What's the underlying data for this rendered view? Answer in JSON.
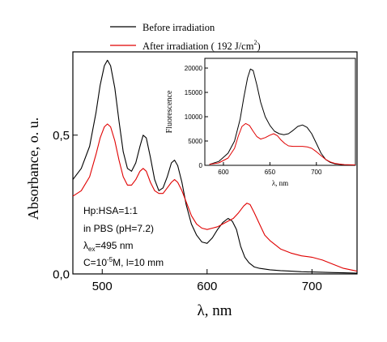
{
  "chart_data": [
    {
      "type": "line",
      "xlabel": "λ, nm",
      "ylabel": "Absorbance, o. u.",
      "xlim": [
        472,
        743
      ],
      "ylim": [
        0.0,
        0.8
      ],
      "x_ticks": [
        500,
        600,
        700
      ],
      "x_tick_labels": [
        "500",
        "600",
        "700"
      ],
      "y_ticks": [
        0.0,
        0.5
      ],
      "y_tick_labels": [
        "0,0",
        "0,5"
      ],
      "legend": {
        "placement": "top, above the plot",
        "entries": [
          {
            "label": "Before irradiation",
            "color": "#000000"
          },
          {
            "label_main": "After irradiation ( 192 J/cm",
            "label_sup": "2",
            "label_tail": ")",
            "color": "#e00000"
          }
        ]
      },
      "annotation": {
        "line1": "Hp:HSA=1:1",
        "line2": "in PBS (pH=7.2)",
        "line3_lambda": "λ",
        "line3_sub": "ex",
        "line3_rest": "=495 nm",
        "line4_c": "C=10",
        "line4_sup": "-5",
        "line4_rest": "M, l=10 mm"
      },
      "series": [
        {
          "name": "Before irradiation",
          "color": "#000000",
          "x": [
            472,
            480,
            488,
            494,
            498,
            502,
            505,
            508,
            512,
            516,
            520,
            524,
            528,
            532,
            536,
            539,
            542,
            546,
            550,
            554,
            558,
            562,
            566,
            569,
            572,
            576,
            580,
            585,
            590,
            595,
            600,
            605,
            610,
            615,
            620,
            624,
            628,
            632,
            636,
            640,
            645,
            650,
            660,
            670,
            680,
            690,
            700,
            710,
            720,
            730,
            743
          ],
          "y": [
            0.34,
            0.38,
            0.46,
            0.58,
            0.68,
            0.75,
            0.77,
            0.75,
            0.67,
            0.55,
            0.44,
            0.38,
            0.37,
            0.4,
            0.46,
            0.5,
            0.49,
            0.42,
            0.34,
            0.3,
            0.31,
            0.35,
            0.4,
            0.41,
            0.39,
            0.33,
            0.25,
            0.18,
            0.14,
            0.115,
            0.11,
            0.13,
            0.16,
            0.185,
            0.2,
            0.19,
            0.16,
            0.1,
            0.06,
            0.04,
            0.025,
            0.02,
            0.015,
            0.012,
            0.01,
            0.008,
            0.007,
            0.006,
            0.005,
            0.004,
            0.003
          ]
        },
        {
          "name": "After irradiation ( 192 J/cm2)",
          "color": "#e00000",
          "x": [
            472,
            480,
            488,
            494,
            498,
            502,
            505,
            508,
            512,
            516,
            520,
            524,
            528,
            532,
            536,
            539,
            542,
            546,
            550,
            554,
            558,
            562,
            566,
            569,
            572,
            576,
            580,
            585,
            590,
            595,
            600,
            605,
            610,
            615,
            620,
            625,
            630,
            635,
            638,
            641,
            645,
            650,
            655,
            660,
            670,
            680,
            690,
            700,
            710,
            720,
            730,
            743
          ],
          "y": [
            0.28,
            0.3,
            0.35,
            0.43,
            0.49,
            0.53,
            0.54,
            0.53,
            0.48,
            0.41,
            0.35,
            0.32,
            0.32,
            0.34,
            0.37,
            0.38,
            0.37,
            0.33,
            0.3,
            0.29,
            0.29,
            0.31,
            0.33,
            0.34,
            0.33,
            0.3,
            0.26,
            0.21,
            0.18,
            0.165,
            0.16,
            0.165,
            0.17,
            0.18,
            0.19,
            0.2,
            0.22,
            0.245,
            0.255,
            0.25,
            0.22,
            0.18,
            0.14,
            0.12,
            0.09,
            0.075,
            0.065,
            0.06,
            0.05,
            0.035,
            0.02,
            0.01
          ]
        }
      ]
    },
    {
      "type": "line",
      "xlabel": "λ, nm",
      "ylabel": "Fluorescence",
      "xlim": [
        580,
        742
      ],
      "ylim": [
        0,
        22000
      ],
      "x_ticks": [
        600,
        650,
        700
      ],
      "x_tick_labels": [
        "600",
        "650",
        "700"
      ],
      "y_ticks": [
        0,
        5000,
        10000,
        15000,
        20000
      ],
      "y_tick_labels": [
        "0",
        "5000",
        "10000",
        "15000",
        "20000"
      ],
      "series": [
        {
          "name": "Before irradiation",
          "color": "#000000",
          "x": [
            585,
            595,
            605,
            612,
            618,
            622,
            626,
            629,
            632,
            636,
            640,
            645,
            650,
            655,
            660,
            665,
            670,
            675,
            680,
            685,
            690,
            695,
            700,
            705,
            710,
            715,
            720,
            725,
            730,
            742
          ],
          "y": [
            200,
            800,
            2500,
            5000,
            9500,
            14000,
            18000,
            19800,
            19500,
            16500,
            13000,
            10000,
            8200,
            7000,
            6500,
            6300,
            6500,
            7200,
            8000,
            8300,
            7800,
            6500,
            4500,
            2500,
            1200,
            600,
            300,
            200,
            100,
            50
          ]
        },
        {
          "name": "After irradiation ( 192 J/cm2)",
          "color": "#e00000",
          "x": [
            585,
            595,
            605,
            612,
            616,
            620,
            624,
            628,
            632,
            636,
            640,
            645,
            650,
            654,
            658,
            662,
            666,
            670,
            675,
            680,
            685,
            690,
            695,
            700,
            705,
            710,
            715,
            720,
            725,
            730,
            742
          ],
          "y": [
            200,
            500,
            1500,
            3500,
            6000,
            8000,
            8600,
            8200,
            7000,
            5900,
            5400,
            5700,
            6200,
            6500,
            6100,
            5200,
            4500,
            4000,
            3900,
            3900,
            3900,
            3800,
            3500,
            2800,
            2000,
            1200,
            700,
            400,
            250,
            150,
            80
          ]
        }
      ]
    }
  ]
}
